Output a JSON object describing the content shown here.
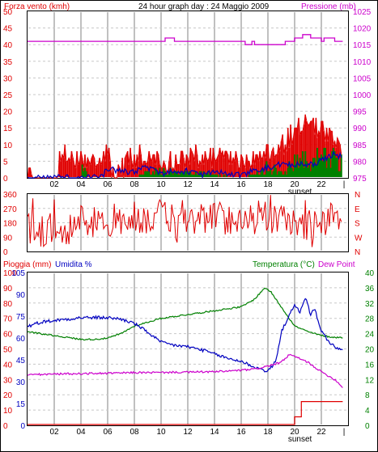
{
  "header": {
    "title": "24 hour graph day : 24 Maggio 2009",
    "wind_label": "Forza vento (kmh)",
    "pressure_label": "Pressione (mb)"
  },
  "lower_header": {
    "rain_label": "Pioggia (mm)",
    "humidity_label": "Umidita %",
    "temp_label": "Temperatura (°C)",
    "dew_label": "Dew Point"
  },
  "x_axis": {
    "ticks": [
      "02",
      "04",
      "06",
      "08",
      "10",
      "12",
      "14",
      "16",
      "18",
      "20",
      "22"
    ],
    "sunset_label": "sunset",
    "end_marker": "|"
  },
  "colors": {
    "red": "#e00000",
    "green": "#008000",
    "blue": "#0000c0",
    "magenta": "#cc00cc",
    "grid": "#c8c8c8",
    "day_line": "#c0c0c0",
    "frame": "#000000"
  },
  "chart_data": [
    {
      "type": "bar",
      "name": "wind",
      "xlim": [
        0,
        24
      ],
      "left_axis": {
        "ticks": [
          0,
          5,
          10,
          15,
          20,
          25,
          30,
          35,
          40,
          45,
          50
        ],
        "label": "Forza vento (kmh)",
        "ylim": [
          0,
          50
        ]
      },
      "right_axis": {
        "ticks": [
          975,
          980,
          985,
          990,
          995,
          1000,
          1005,
          1010,
          1015,
          1020,
          1025
        ],
        "label": "Pressione (mb)",
        "ylim": [
          975,
          1025
        ]
      },
      "series": [
        {
          "name": "wind_gust",
          "color": "#e00000",
          "profile": [
            [
              0,
              0
            ],
            [
              0.35,
              4
            ],
            [
              0.4,
              0
            ],
            [
              2.2,
              0
            ],
            [
              2.4,
              7
            ],
            [
              6,
              7
            ],
            [
              6.5,
              0
            ],
            [
              7.5,
              6
            ],
            [
              9,
              7
            ],
            [
              10.5,
              5
            ],
            [
              12,
              7
            ],
            [
              14,
              6
            ],
            [
              15,
              7
            ],
            [
              16.5,
              5
            ],
            [
              17.5,
              7
            ],
            [
              18.5,
              8
            ],
            [
              19.5,
              12
            ],
            [
              20,
              14
            ],
            [
              21,
              18
            ],
            [
              22,
              15
            ],
            [
              23,
              12
            ],
            [
              23.6,
              10
            ]
          ]
        },
        {
          "name": "wind_avg",
          "color": "#008000",
          "profile": [
            [
              0,
              0
            ],
            [
              4,
              0
            ],
            [
              4.1,
              4
            ],
            [
              4.4,
              4
            ],
            [
              4.5,
              0
            ],
            [
              8,
              0
            ],
            [
              9,
              2
            ],
            [
              12,
              2
            ],
            [
              16,
              0
            ],
            [
              17,
              1
            ],
            [
              18,
              4
            ],
            [
              19,
              2
            ],
            [
              20,
              5
            ],
            [
              21,
              6
            ],
            [
              22,
              7
            ],
            [
              23,
              6
            ],
            [
              23.6,
              6
            ]
          ]
        },
        {
          "name": "wind_mean_line",
          "color": "#0000c0",
          "profile": [
            [
              0,
              0
            ],
            [
              5.5,
              0
            ],
            [
              6,
              3
            ],
            [
              7,
              2
            ],
            [
              8,
              2
            ],
            [
              9,
              3
            ],
            [
              10,
              1
            ],
            [
              11,
              2
            ],
            [
              12,
              2
            ],
            [
              13,
              1
            ],
            [
              14,
              2
            ],
            [
              15,
              1
            ],
            [
              16,
              1
            ],
            [
              17,
              2
            ],
            [
              18,
              3
            ],
            [
              19,
              4
            ],
            [
              20,
              4
            ],
            [
              21,
              4
            ],
            [
              22,
              5
            ],
            [
              23,
              7
            ],
            [
              23.6,
              6
            ]
          ]
        },
        {
          "name": "pressure",
          "color": "#cc00cc",
          "axis": "right",
          "points": [
            [
              0,
              1016
            ],
            [
              10.3,
              1016
            ],
            [
              10.3,
              1017
            ],
            [
              11,
              1017
            ],
            [
              11,
              1016
            ],
            [
              16.3,
              1016
            ],
            [
              16.3,
              1015
            ],
            [
              16.8,
              1015
            ],
            [
              16.8,
              1016
            ],
            [
              17,
              1016
            ],
            [
              17,
              1015
            ],
            [
              19.3,
              1015
            ],
            [
              19.3,
              1016
            ],
            [
              20,
              1016
            ],
            [
              20,
              1017
            ],
            [
              20.6,
              1017
            ],
            [
              20.6,
              1018
            ],
            [
              21.2,
              1018
            ],
            [
              21.2,
              1017
            ],
            [
              22,
              1017
            ],
            [
              22,
              1016
            ],
            [
              22.2,
              1016
            ],
            [
              22.2,
              1017
            ],
            [
              23,
              1017
            ],
            [
              23,
              1016
            ],
            [
              23.6,
              1016
            ]
          ]
        }
      ]
    },
    {
      "type": "line",
      "name": "wind_direction",
      "xlim": [
        0,
        24
      ],
      "left_axis": {
        "ticks": [
          0,
          90,
          180,
          270,
          360
        ],
        "ylim": [
          0,
          360
        ]
      },
      "right_axis": {
        "ticks": [
          "N",
          "W",
          "S",
          "E",
          "N"
        ]
      },
      "series": [
        {
          "name": "direction",
          "color": "#e00000",
          "profile": [
            [
              0,
              150
            ],
            [
              1,
              120
            ],
            [
              2,
              160
            ],
            [
              3,
              140
            ],
            [
              4,
              200
            ],
            [
              5,
              180
            ],
            [
              6,
              160
            ],
            [
              7,
              190
            ],
            [
              8,
              220
            ],
            [
              9,
              200
            ],
            [
              10,
              230
            ],
            [
              11,
              200
            ],
            [
              12,
              190
            ],
            [
              13,
              210
            ],
            [
              14,
              220
            ],
            [
              15,
              200
            ],
            [
              16,
              210
            ],
            [
              17,
              230
            ],
            [
              18,
              220
            ],
            [
              19,
              200
            ],
            [
              20,
              180
            ],
            [
              21,
              170
            ],
            [
              22,
              190
            ],
            [
              23,
              210
            ],
            [
              23.6,
              200
            ]
          ]
        }
      ]
    },
    {
      "type": "line",
      "name": "temp_hum_rain",
      "xlim": [
        0,
        24
      ],
      "left_axis_rain": {
        "ticks": [
          0,
          10,
          20,
          30,
          40,
          50,
          60,
          70,
          80,
          90,
          100
        ],
        "label": "Pioggia (mm)",
        "ylim": [
          0,
          100
        ]
      },
      "left_axis_humidity": {
        "ticks": [
          0,
          15,
          30,
          45,
          60,
          75,
          90,
          105
        ],
        "label": "Umidita %",
        "ylim": [
          0,
          105
        ]
      },
      "right_axis_temp": {
        "ticks": [
          0,
          4,
          8,
          12,
          16,
          20,
          24,
          28,
          32,
          36,
          40
        ],
        "label": "Temperatura (°C)",
        "ylim": [
          0,
          40
        ]
      },
      "series": [
        {
          "name": "Temperatura",
          "color": "#008000",
          "axis": "temp",
          "points": [
            [
              0,
              24.5
            ],
            [
              1,
              24
            ],
            [
              2,
              23.5
            ],
            [
              3,
              23
            ],
            [
              4,
              22.5
            ],
            [
              5,
              22.5
            ],
            [
              6,
              22.8
            ],
            [
              7,
              24
            ],
            [
              8,
              26
            ],
            [
              9,
              27
            ],
            [
              10,
              28
            ],
            [
              11,
              28.5
            ],
            [
              12,
              29
            ],
            [
              13,
              29.5
            ],
            [
              14,
              30
            ],
            [
              15,
              30.5
            ],
            [
              16,
              31
            ],
            [
              17,
              33
            ],
            [
              17.5,
              35
            ],
            [
              17.8,
              36
            ],
            [
              18.2,
              35
            ],
            [
              19,
              31
            ],
            [
              20,
              26
            ],
            [
              21,
              24.5
            ],
            [
              22,
              23.5
            ],
            [
              23,
              23
            ],
            [
              23.6,
              23
            ]
          ]
        },
        {
          "name": "Umidita",
          "color": "#0000c0",
          "axis": "humidity",
          "points": [
            [
              0,
              68
            ],
            [
              1,
              71
            ],
            [
              2,
              72
            ],
            [
              3,
              73
            ],
            [
              4,
              74
            ],
            [
              5,
              74
            ],
            [
              6,
              74
            ],
            [
              7,
              73
            ],
            [
              8,
              70
            ],
            [
              9,
              64
            ],
            [
              10,
              57
            ],
            [
              11,
              55
            ],
            [
              12,
              54
            ],
            [
              13,
              52
            ],
            [
              14,
              49
            ],
            [
              15,
              46
            ],
            [
              16,
              44
            ],
            [
              17,
              40
            ],
            [
              18,
              37
            ],
            [
              18.6,
              44
            ],
            [
              19,
              64
            ],
            [
              19.6,
              76
            ],
            [
              20,
              82
            ],
            [
              20.4,
              78
            ],
            [
              20.8,
              88
            ],
            [
              21.2,
              76
            ],
            [
              21.5,
              80
            ],
            [
              22,
              65
            ],
            [
              22.5,
              58
            ],
            [
              23,
              54
            ],
            [
              23.6,
              51
            ]
          ]
        },
        {
          "name": "Dew Point",
          "color": "#cc00cc",
          "axis": "temp",
          "points": [
            [
              0,
              13.3
            ],
            [
              1,
              13.3
            ],
            [
              2,
              13.4
            ],
            [
              3,
              13.5
            ],
            [
              4,
              13.5
            ],
            [
              5,
              13.6
            ],
            [
              6,
              13.6
            ],
            [
              7,
              13.7
            ],
            [
              8,
              13.8
            ],
            [
              9,
              13.8
            ],
            [
              10,
              13.8
            ],
            [
              11,
              13.9
            ],
            [
              12,
              13.9
            ],
            [
              13,
              14
            ],
            [
              14,
              14
            ],
            [
              15,
              14.2
            ],
            [
              16,
              14.4
            ],
            [
              17,
              14.7
            ],
            [
              18,
              15.5
            ],
            [
              19,
              16.5
            ],
            [
              19.6,
              18.5
            ],
            [
              20,
              18
            ],
            [
              21,
              16.5
            ],
            [
              22,
              14
            ],
            [
              23,
              12
            ],
            [
              23.6,
              10
            ]
          ]
        },
        {
          "name": "Pioggia",
          "color": "#e00000",
          "axis": "rain",
          "points": [
            [
              0,
              0
            ],
            [
              20,
              0
            ],
            [
              20,
              5
            ],
            [
              20.5,
              5
            ],
            [
              20.5,
              15
            ],
            [
              23.6,
              15
            ]
          ]
        }
      ]
    }
  ]
}
